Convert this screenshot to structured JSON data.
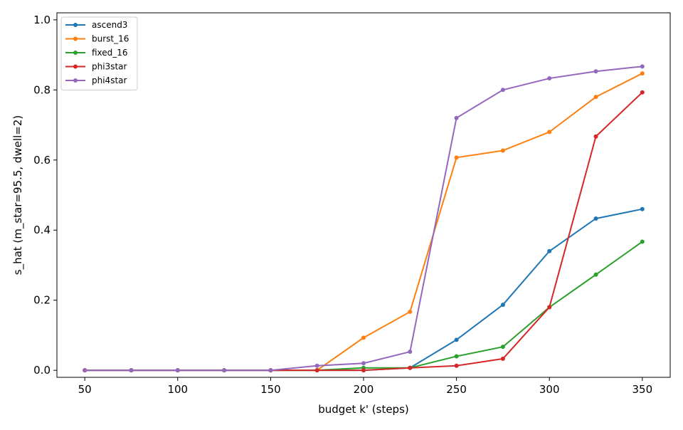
{
  "chart_data": {
    "type": "line",
    "title": "",
    "xlabel": "budget k' (steps)",
    "ylabel": "s_hat (m_star=95.5, dwell=2)",
    "x": [
      50,
      75,
      100,
      125,
      150,
      175,
      200,
      225,
      250,
      275,
      300,
      325,
      350
    ],
    "xticks": [
      50,
      100,
      150,
      200,
      250,
      300,
      350
    ],
    "yticks": [
      0.0,
      0.2,
      0.4,
      0.6,
      0.8,
      1.0
    ],
    "xtick_labels": [
      "50",
      "100",
      "150",
      "200",
      "250",
      "300",
      "350"
    ],
    "ytick_labels": [
      "0.0",
      "0.2",
      "0.4",
      "0.6",
      "0.8",
      "1.0"
    ],
    "xlim": [
      35,
      365
    ],
    "ylim": [
      -0.02,
      1.02
    ],
    "grid": false,
    "legend_position": "top-left",
    "series": [
      {
        "name": "ascend3",
        "color": "#1f77b4",
        "values": [
          0.0,
          0.0,
          0.0,
          0.0,
          0.0,
          0.0,
          0.0,
          0.007,
          0.087,
          0.187,
          0.34,
          0.433,
          0.46
        ]
      },
      {
        "name": "burst_16",
        "color": "#ff7f0e",
        "values": [
          0.0,
          0.0,
          0.0,
          0.0,
          0.0,
          0.0,
          0.093,
          0.167,
          0.607,
          0.627,
          0.68,
          0.78,
          0.847
        ]
      },
      {
        "name": "fixed_16",
        "color": "#2ca02c",
        "values": [
          0.0,
          0.0,
          0.0,
          0.0,
          0.0,
          0.0,
          0.007,
          0.007,
          0.04,
          0.067,
          0.18,
          0.273,
          0.367
        ]
      },
      {
        "name": "phi3star",
        "color": "#d62728",
        "values": [
          0.0,
          0.0,
          0.0,
          0.0,
          0.0,
          0.0,
          0.0,
          0.007,
          0.013,
          0.033,
          0.18,
          0.667,
          0.793
        ]
      },
      {
        "name": "phi4star",
        "color": "#9467bd",
        "values": [
          0.0,
          0.0,
          0.0,
          0.0,
          0.0,
          0.013,
          0.02,
          0.053,
          0.72,
          0.8,
          0.833,
          0.853,
          0.867
        ]
      }
    ]
  }
}
